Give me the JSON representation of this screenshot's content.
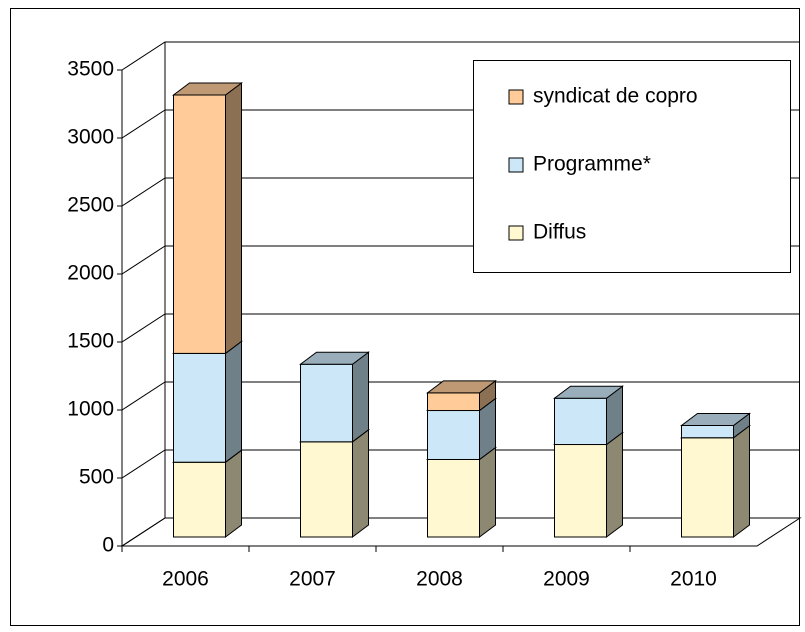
{
  "chart_data": {
    "type": "bar3d_stacked",
    "categories": [
      "2006",
      "2007",
      "2008",
      "2009",
      "2010"
    ],
    "series": [
      {
        "name": "Diffus",
        "color": "#fff8d0",
        "values": [
          550,
          700,
          570,
          680,
          730
        ]
      },
      {
        "name": "Programme*",
        "color": "#cce8f8",
        "values": [
          800,
          570,
          360,
          340,
          90
        ]
      },
      {
        "name": "syndicat de copro",
        "color": "#ffcc99",
        "values": [
          1900,
          null,
          130,
          null,
          null
        ]
      }
    ],
    "ylim": [
      0,
      3500
    ],
    "yticks": [
      0,
      500,
      1000,
      1500,
      2000,
      2500,
      3000,
      3500
    ],
    "grid": true,
    "legend": "upper right"
  }
}
